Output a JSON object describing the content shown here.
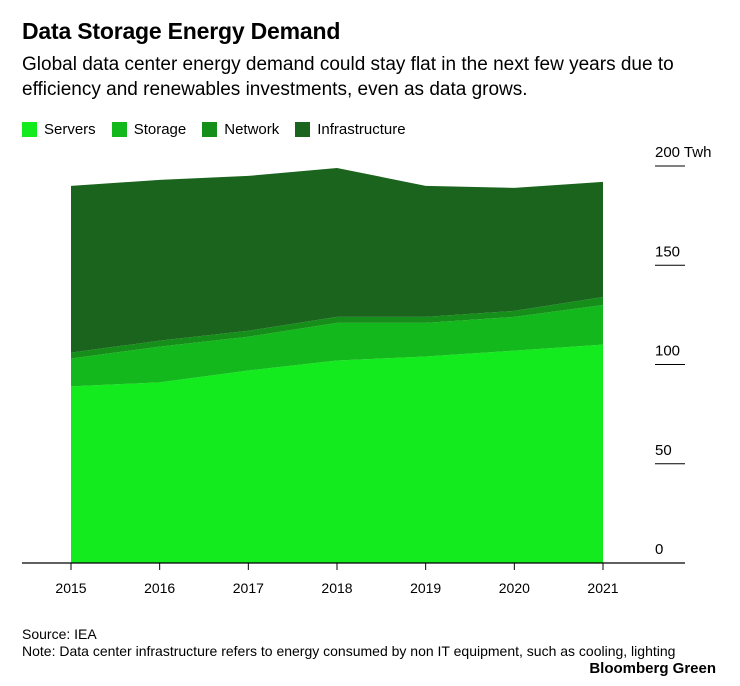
{
  "title": "Data Storage Energy Demand",
  "subtitle": "Global data center energy demand could stay flat in the next few years due to efficiency and renewables investments, even as data grows.",
  "colors": {
    "servers": "#14eb1f",
    "storage": "#13b81c",
    "network": "#168f1a",
    "infrastructure": "#1a641d"
  },
  "chart_data": {
    "type": "area",
    "stacked": true,
    "title": "Data Storage Energy Demand",
    "x": [
      "2015",
      "2016",
      "2017",
      "2018",
      "2019",
      "2020",
      "2021"
    ],
    "series": [
      {
        "name": "Servers",
        "values": [
          89,
          91,
          97,
          102,
          104,
          107,
          110
        ]
      },
      {
        "name": "Storage",
        "values": [
          14,
          18,
          17,
          19,
          17,
          17,
          20
        ]
      },
      {
        "name": "Network",
        "values": [
          3,
          3,
          3,
          3,
          3,
          3,
          4
        ]
      },
      {
        "name": "Infrastructure",
        "values": [
          84,
          81,
          78,
          75,
          66,
          62,
          58
        ]
      }
    ],
    "ylim": [
      0,
      200
    ],
    "yticks": [
      "0",
      "50",
      "100",
      "150",
      "200 Twh"
    ],
    "ytick_values": [
      0,
      50,
      100,
      150,
      200
    ],
    "ylabel": "Twh",
    "legend_position": "top-left"
  },
  "source": "Source: IEA",
  "note": "Note: Data center infrastructure refers to energy consumed by non IT equipment, such as cooling, lighting",
  "brand": "Bloomberg Green"
}
